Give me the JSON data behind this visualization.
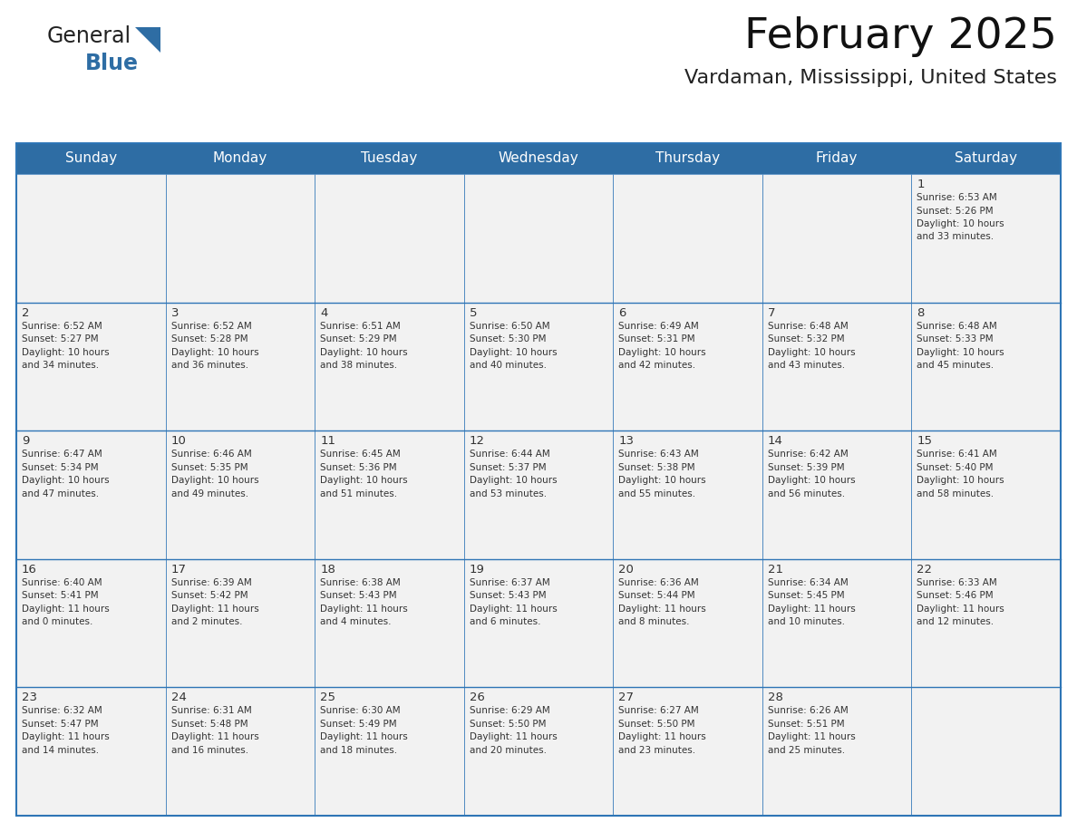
{
  "title": "February 2025",
  "subtitle": "Vardaman, Mississippi, United States",
  "header_bg": "#2E6DA4",
  "header_text_color": "#FFFFFF",
  "cell_bg_light": "#F2F2F2",
  "cell_bg_white": "#FFFFFF",
  "border_color": "#2E75B6",
  "text_color": "#333333",
  "day_headers": [
    "Sunday",
    "Monday",
    "Tuesday",
    "Wednesday",
    "Thursday",
    "Friday",
    "Saturday"
  ],
  "days": [
    {
      "day": 1,
      "col": 6,
      "row": 0,
      "sunrise": "6:53 AM",
      "sunset": "5:26 PM",
      "daylight_h": "10 hours",
      "daylight_m": "and 33 minutes."
    },
    {
      "day": 2,
      "col": 0,
      "row": 1,
      "sunrise": "6:52 AM",
      "sunset": "5:27 PM",
      "daylight_h": "10 hours",
      "daylight_m": "and 34 minutes."
    },
    {
      "day": 3,
      "col": 1,
      "row": 1,
      "sunrise": "6:52 AM",
      "sunset": "5:28 PM",
      "daylight_h": "10 hours",
      "daylight_m": "and 36 minutes."
    },
    {
      "day": 4,
      "col": 2,
      "row": 1,
      "sunrise": "6:51 AM",
      "sunset": "5:29 PM",
      "daylight_h": "10 hours",
      "daylight_m": "and 38 minutes."
    },
    {
      "day": 5,
      "col": 3,
      "row": 1,
      "sunrise": "6:50 AM",
      "sunset": "5:30 PM",
      "daylight_h": "10 hours",
      "daylight_m": "and 40 minutes."
    },
    {
      "day": 6,
      "col": 4,
      "row": 1,
      "sunrise": "6:49 AM",
      "sunset": "5:31 PM",
      "daylight_h": "10 hours",
      "daylight_m": "and 42 minutes."
    },
    {
      "day": 7,
      "col": 5,
      "row": 1,
      "sunrise": "6:48 AM",
      "sunset": "5:32 PM",
      "daylight_h": "10 hours",
      "daylight_m": "and 43 minutes."
    },
    {
      "day": 8,
      "col": 6,
      "row": 1,
      "sunrise": "6:48 AM",
      "sunset": "5:33 PM",
      "daylight_h": "10 hours",
      "daylight_m": "and 45 minutes."
    },
    {
      "day": 9,
      "col": 0,
      "row": 2,
      "sunrise": "6:47 AM",
      "sunset": "5:34 PM",
      "daylight_h": "10 hours",
      "daylight_m": "and 47 minutes."
    },
    {
      "day": 10,
      "col": 1,
      "row": 2,
      "sunrise": "6:46 AM",
      "sunset": "5:35 PM",
      "daylight_h": "10 hours",
      "daylight_m": "and 49 minutes."
    },
    {
      "day": 11,
      "col": 2,
      "row": 2,
      "sunrise": "6:45 AM",
      "sunset": "5:36 PM",
      "daylight_h": "10 hours",
      "daylight_m": "and 51 minutes."
    },
    {
      "day": 12,
      "col": 3,
      "row": 2,
      "sunrise": "6:44 AM",
      "sunset": "5:37 PM",
      "daylight_h": "10 hours",
      "daylight_m": "and 53 minutes."
    },
    {
      "day": 13,
      "col": 4,
      "row": 2,
      "sunrise": "6:43 AM",
      "sunset": "5:38 PM",
      "daylight_h": "10 hours",
      "daylight_m": "and 55 minutes."
    },
    {
      "day": 14,
      "col": 5,
      "row": 2,
      "sunrise": "6:42 AM",
      "sunset": "5:39 PM",
      "daylight_h": "10 hours",
      "daylight_m": "and 56 minutes."
    },
    {
      "day": 15,
      "col": 6,
      "row": 2,
      "sunrise": "6:41 AM",
      "sunset": "5:40 PM",
      "daylight_h": "10 hours",
      "daylight_m": "and 58 minutes."
    },
    {
      "day": 16,
      "col": 0,
      "row": 3,
      "sunrise": "6:40 AM",
      "sunset": "5:41 PM",
      "daylight_h": "11 hours",
      "daylight_m": "and 0 minutes."
    },
    {
      "day": 17,
      "col": 1,
      "row": 3,
      "sunrise": "6:39 AM",
      "sunset": "5:42 PM",
      "daylight_h": "11 hours",
      "daylight_m": "and 2 minutes."
    },
    {
      "day": 18,
      "col": 2,
      "row": 3,
      "sunrise": "6:38 AM",
      "sunset": "5:43 PM",
      "daylight_h": "11 hours",
      "daylight_m": "and 4 minutes."
    },
    {
      "day": 19,
      "col": 3,
      "row": 3,
      "sunrise": "6:37 AM",
      "sunset": "5:43 PM",
      "daylight_h": "11 hours",
      "daylight_m": "and 6 minutes."
    },
    {
      "day": 20,
      "col": 4,
      "row": 3,
      "sunrise": "6:36 AM",
      "sunset": "5:44 PM",
      "daylight_h": "11 hours",
      "daylight_m": "and 8 minutes."
    },
    {
      "day": 21,
      "col": 5,
      "row": 3,
      "sunrise": "6:34 AM",
      "sunset": "5:45 PM",
      "daylight_h": "11 hours",
      "daylight_m": "and 10 minutes."
    },
    {
      "day": 22,
      "col": 6,
      "row": 3,
      "sunrise": "6:33 AM",
      "sunset": "5:46 PM",
      "daylight_h": "11 hours",
      "daylight_m": "and 12 minutes."
    },
    {
      "day": 23,
      "col": 0,
      "row": 4,
      "sunrise": "6:32 AM",
      "sunset": "5:47 PM",
      "daylight_h": "11 hours",
      "daylight_m": "and 14 minutes."
    },
    {
      "day": 24,
      "col": 1,
      "row": 4,
      "sunrise": "6:31 AM",
      "sunset": "5:48 PM",
      "daylight_h": "11 hours",
      "daylight_m": "and 16 minutes."
    },
    {
      "day": 25,
      "col": 2,
      "row": 4,
      "sunrise": "6:30 AM",
      "sunset": "5:49 PM",
      "daylight_h": "11 hours",
      "daylight_m": "and 18 minutes."
    },
    {
      "day": 26,
      "col": 3,
      "row": 4,
      "sunrise": "6:29 AM",
      "sunset": "5:50 PM",
      "daylight_h": "11 hours",
      "daylight_m": "and 20 minutes."
    },
    {
      "day": 27,
      "col": 4,
      "row": 4,
      "sunrise": "6:27 AM",
      "sunset": "5:50 PM",
      "daylight_h": "11 hours",
      "daylight_m": "and 23 minutes."
    },
    {
      "day": 28,
      "col": 5,
      "row": 4,
      "sunrise": "6:26 AM",
      "sunset": "5:51 PM",
      "daylight_h": "11 hours",
      "daylight_m": "and 25 minutes."
    }
  ],
  "num_rows": 5,
  "logo_text_general": "General",
  "logo_text_blue": "Blue",
  "logo_color_general": "#222222",
  "logo_color_blue": "#2E6DA4",
  "logo_triangle_color": "#2E6DA4"
}
